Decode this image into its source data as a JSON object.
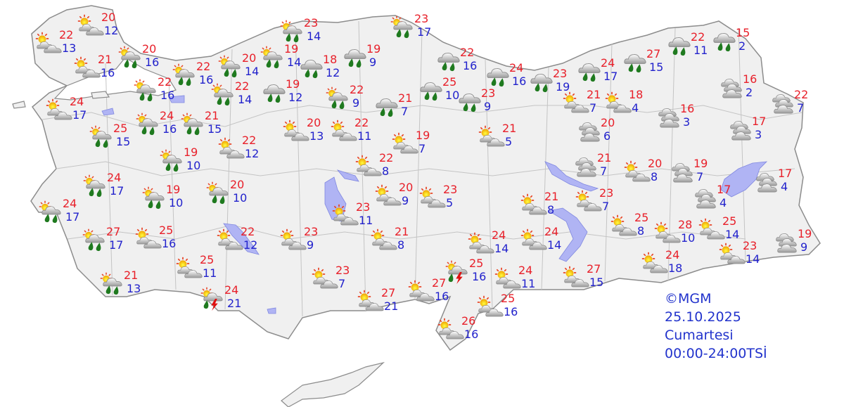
{
  "legend": {
    "copyright": "©MGM",
    "date": "25.10.2025",
    "day": "Cumartesi",
    "period": "00:00-24:00TSİ"
  },
  "colors": {
    "max_temp": "#e8202a",
    "min_temp": "#2222cc",
    "land": "#f0f0f0",
    "border": "#a0a0a0",
    "lake": "#b0b4f4",
    "rain_drop": "#1f7a1f"
  },
  "icon_types": [
    "partly-cloudy",
    "partly-cloudy-rain",
    "rain",
    "cloudy",
    "thunderstorm"
  ],
  "stations": [
    {
      "icon": "partly-cloudy",
      "max": "20",
      "min": "12"
    },
    {
      "icon": "partly-cloudy",
      "max": "22",
      "min": "13"
    },
    {
      "icon": "partly-cloudy",
      "max": "21",
      "min": "16"
    },
    {
      "icon": "partly-cloudy-rain",
      "max": "20",
      "min": "16"
    },
    {
      "icon": "partly-cloudy-rain",
      "max": "22",
      "min": "16"
    },
    {
      "icon": "partly-cloudy-rain",
      "max": "22",
      "min": "16"
    },
    {
      "icon": "partly-cloudy-rain",
      "max": "20",
      "min": "14"
    },
    {
      "icon": "partly-cloudy-rain",
      "max": "22",
      "min": "14"
    },
    {
      "icon": "partly-cloudy",
      "max": "24",
      "min": "17"
    },
    {
      "icon": "partly-cloudy-rain",
      "max": "25",
      "min": "15"
    },
    {
      "icon": "partly-cloudy-rain",
      "max": "24",
      "min": "16"
    },
    {
      "icon": "partly-cloudy-rain",
      "max": "21",
      "min": "15"
    },
    {
      "icon": "partly-cloudy",
      "max": "22",
      "min": "12"
    },
    {
      "icon": "partly-cloudy-rain",
      "max": "19",
      "min": "10"
    },
    {
      "icon": "partly-cloudy-rain",
      "max": "24",
      "min": "17"
    },
    {
      "icon": "partly-cloudy-rain",
      "max": "19",
      "min": "10"
    },
    {
      "icon": "partly-cloudy-rain",
      "max": "20",
      "min": "10"
    },
    {
      "icon": "partly-cloudy-rain",
      "max": "24",
      "min": "17"
    },
    {
      "icon": "partly-cloudy-rain",
      "max": "27",
      "min": "17"
    },
    {
      "icon": "partly-cloudy",
      "max": "25",
      "min": "16"
    },
    {
      "icon": "partly-cloudy",
      "max": "22",
      "min": "12"
    },
    {
      "icon": "partly-cloudy",
      "max": "25",
      "min": "11"
    },
    {
      "icon": "partly-cloudy-rain",
      "max": "21",
      "min": "13"
    },
    {
      "icon": "thunderstorm",
      "max": "24",
      "min": "21"
    },
    {
      "icon": "partly-cloudy-rain",
      "max": "23",
      "min": "14"
    },
    {
      "icon": "partly-cloudy-rain",
      "max": "19",
      "min": "14"
    },
    {
      "icon": "rain",
      "max": "18",
      "min": "12"
    },
    {
      "icon": "rain",
      "max": "19",
      "min": "12"
    },
    {
      "icon": "rain",
      "max": "19",
      "min": "9"
    },
    {
      "icon": "partly-cloudy-rain",
      "max": "22",
      "min": "9"
    },
    {
      "icon": "rain",
      "max": "21",
      "min": "7"
    },
    {
      "icon": "partly-cloudy",
      "max": "20",
      "min": "13"
    },
    {
      "icon": "partly-cloudy",
      "max": "22",
      "min": "11"
    },
    {
      "icon": "partly-cloudy",
      "max": "19",
      "min": "7"
    },
    {
      "icon": "partly-cloudy-rain",
      "max": "23",
      "min": "17"
    },
    {
      "icon": "rain",
      "max": "22",
      "min": "16"
    },
    {
      "icon": "rain",
      "max": "25",
      "min": "10"
    },
    {
      "icon": "rain",
      "max": "23",
      "min": "9"
    },
    {
      "icon": "rain",
      "max": "24",
      "min": "16"
    },
    {
      "icon": "rain",
      "max": "23",
      "min": "19"
    },
    {
      "icon": "partly-cloudy",
      "max": "21",
      "min": "5"
    },
    {
      "icon": "partly-cloudy",
      "max": "22",
      "min": "8"
    },
    {
      "icon": "partly-cloudy",
      "max": "20",
      "min": "9"
    },
    {
      "icon": "partly-cloudy",
      "max": "23",
      "min": "5"
    },
    {
      "icon": "partly-cloudy",
      "max": "23",
      "min": "11"
    },
    {
      "icon": "partly-cloudy",
      "max": "21",
      "min": "8"
    },
    {
      "icon": "partly-cloudy",
      "max": "23",
      "min": "9"
    },
    {
      "icon": "partly-cloudy",
      "max": "23",
      "min": "7"
    },
    {
      "icon": "partly-cloudy",
      "max": "27",
      "min": "21"
    },
    {
      "icon": "partly-cloudy",
      "max": "27",
      "min": "16"
    },
    {
      "icon": "thunderstorm",
      "max": "25",
      "min": "16"
    },
    {
      "icon": "partly-cloudy",
      "max": "24",
      "min": "14"
    },
    {
      "icon": "partly-cloudy",
      "max": "24",
      "min": "11"
    },
    {
      "icon": "partly-cloudy",
      "max": "25",
      "min": "16"
    },
    {
      "icon": "partly-cloudy",
      "max": "26",
      "min": "16"
    },
    {
      "icon": "partly-cloudy",
      "max": "21",
      "min": "8"
    },
    {
      "icon": "partly-cloudy",
      "max": "24",
      "min": "14"
    },
    {
      "icon": "partly-cloudy",
      "max": "27",
      "min": "15"
    },
    {
      "icon": "partly-cloudy",
      "max": "23",
      "min": "7"
    },
    {
      "icon": "cloudy",
      "max": "21",
      "min": "7"
    },
    {
      "icon": "cloudy",
      "max": "20",
      "min": "6"
    },
    {
      "icon": "partly-cloudy",
      "max": "21",
      "min": "7"
    },
    {
      "icon": "partly-cloudy",
      "max": "18",
      "min": "4"
    },
    {
      "icon": "rain",
      "max": "24",
      "min": "17"
    },
    {
      "icon": "rain",
      "max": "27",
      "min": "15"
    },
    {
      "icon": "rain",
      "max": "22",
      "min": "11"
    },
    {
      "icon": "rain",
      "max": "15",
      "min": "2"
    },
    {
      "icon": "cloudy",
      "max": "16",
      "min": "2"
    },
    {
      "icon": "cloudy",
      "max": "22",
      "min": "7"
    },
    {
      "icon": "cloudy",
      "max": "16",
      "min": "3"
    },
    {
      "icon": "cloudy",
      "max": "17",
      "min": "3"
    },
    {
      "icon": "partly-cloudy",
      "max": "20",
      "min": "8"
    },
    {
      "icon": "cloudy",
      "max": "19",
      "min": "7"
    },
    {
      "icon": "cloudy",
      "max": "17",
      "min": "4"
    },
    {
      "icon": "cloudy",
      "max": "17",
      "min": "4"
    },
    {
      "icon": "partly-cloudy",
      "max": "25",
      "min": "8"
    },
    {
      "icon": "partly-cloudy",
      "max": "28",
      "min": "10"
    },
    {
      "icon": "partly-cloudy",
      "max": "25",
      "min": "14"
    },
    {
      "icon": "cloudy",
      "max": "19",
      "min": "9"
    },
    {
      "icon": "partly-cloudy",
      "max": "23",
      "min": "14"
    },
    {
      "icon": "partly-cloudy",
      "max": "24",
      "min": "18"
    }
  ]
}
